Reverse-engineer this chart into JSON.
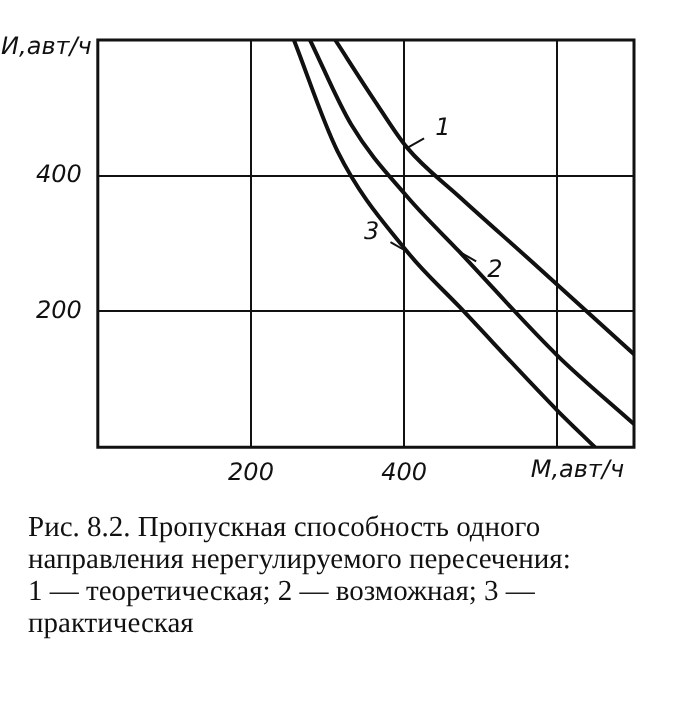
{
  "chart_data": {
    "type": "line",
    "xlabel": "М,авт/ч",
    "ylabel": "И,авт/ч",
    "xlim": [
      0,
      700
    ],
    "ylim": [
      0,
      600
    ],
    "xticks": [
      200,
      400,
      {
        "value": 600,
        "label": null
      }
    ],
    "yticks": [
      200,
      400
    ],
    "grid": true,
    "legend": "right",
    "marker": "none",
    "line_style": "solid",
    "series": [
      {
        "name": "1",
        "color": "#111111",
        "x": [
          310,
          360,
          404,
          472,
          566,
          700
        ],
        "values": [
          600,
          513,
          441,
          369,
          274,
          137
        ]
      },
      {
        "name": "2",
        "color": "#111111",
        "x": [
          277,
          331,
          404,
          472,
          600,
          700
        ],
        "values": [
          600,
          475,
          369,
          288,
          135,
          34
        ]
      },
      {
        "name": "3",
        "color": "#111111",
        "x": [
          256,
          313,
          404,
          472,
          600,
          649
        ],
        "values": [
          600,
          436,
          288,
          207,
          54,
          0
        ]
      }
    ],
    "annotations": [
      "Рис. 8.2. Пропускная способность одного направления нерегулируемого пересечения:",
      "1 — теоретическая; 2 — возможная; 3 — практическая"
    ]
  }
}
